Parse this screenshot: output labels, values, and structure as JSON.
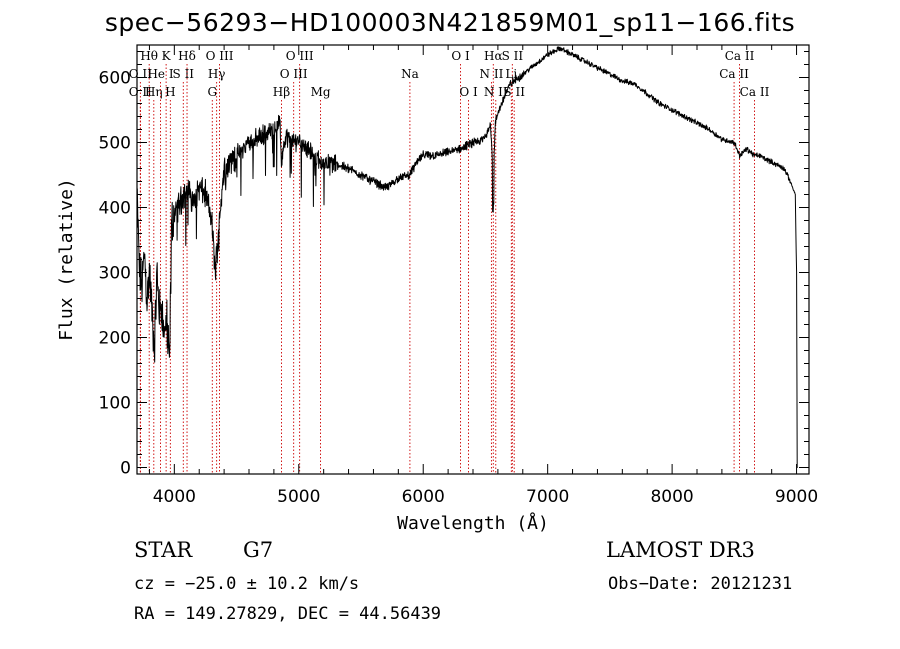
{
  "chart_data": {
    "type": "line",
    "title": "spec−56293−HD100003N421859M01_sp11−166.fits",
    "xlabel": "Wavelength (Å)",
    "ylabel": "Flux (relative)",
    "xlim": [
      3700,
      9100
    ],
    "ylim": [
      -10,
      650
    ],
    "x_ticks": [
      4000,
      5000,
      6000,
      7000,
      8000,
      9000
    ],
    "x_tick_labels": [
      "4000",
      "5000",
      "6000",
      "7000",
      "8000",
      "9000"
    ],
    "y_ticks": [
      0,
      100,
      200,
      300,
      400,
      500,
      600
    ],
    "y_tick_labels": [
      "0",
      "100",
      "200",
      "300",
      "400",
      "500",
      "600"
    ],
    "grid": false,
    "series": [
      {
        "name": "spectrum",
        "x": [
          3700,
          3720,
          3740,
          3760,
          3780,
          3800,
          3820,
          3840,
          3860,
          3880,
          3900,
          3920,
          3940,
          3960,
          3980,
          4000,
          4050,
          4100,
          4150,
          4200,
          4250,
          4300,
          4330,
          4360,
          4400,
          4450,
          4500,
          4600,
          4700,
          4800,
          4850,
          4860,
          4900,
          4950,
          5000,
          5100,
          5170,
          5250,
          5400,
          5500,
          5600,
          5700,
          5800,
          5890,
          5950,
          6000,
          6100,
          6200,
          6300,
          6400,
          6450,
          6500,
          6540,
          6563,
          6580,
          6600,
          6650,
          6700,
          6800,
          6900,
          7000,
          7100,
          7200,
          7300,
          7400,
          7500,
          7600,
          7700,
          7800,
          7900,
          8000,
          8100,
          8200,
          8300,
          8400,
          8500,
          8542,
          8600,
          8662,
          8700,
          8800,
          8900,
          8950,
          8990,
          9000,
          9005
        ],
        "y": [
          420,
          300,
          280,
          330,
          260,
          300,
          240,
          180,
          300,
          240,
          250,
          200,
          230,
          160,
          380,
          390,
          410,
          430,
          410,
          430,
          420,
          380,
          300,
          380,
          460,
          470,
          480,
          500,
          510,
          520,
          530,
          470,
          510,
          500,
          505,
          485,
          470,
          470,
          460,
          450,
          440,
          430,
          445,
          450,
          470,
          480,
          480,
          485,
          490,
          500,
          500,
          510,
          530,
          450,
          530,
          545,
          570,
          590,
          605,
          620,
          635,
          645,
          635,
          625,
          615,
          605,
          595,
          590,
          575,
          560,
          550,
          540,
          530,
          520,
          505,
          500,
          480,
          490,
          480,
          480,
          470,
          460,
          440,
          420,
          300,
          0
        ]
      }
    ],
    "line_markers": [
      {
        "label": "O II",
        "wavelength": 3727,
        "row": 1
      },
      {
        "label": "O II",
        "wavelength": 3727,
        "row": 2
      },
      {
        "label": "Hθ",
        "wavelength": 3798,
        "row": 0
      },
      {
        "label": "Hη",
        "wavelength": 3835,
        "row": 2
      },
      {
        "label": "He I",
        "wavelength": 3889,
        "row": 1
      },
      {
        "label": "K",
        "wavelength": 3934,
        "row": 0
      },
      {
        "label": "H",
        "wavelength": 3968,
        "row": 2
      },
      {
        "label": "S II",
        "wavelength": 4072,
        "row": 1
      },
      {
        "label": "Hδ",
        "wavelength": 4102,
        "row": 0
      },
      {
        "label": "O III",
        "wavelength": 4363,
        "row": 0
      },
      {
        "label": "Hγ",
        "wavelength": 4340,
        "row": 1
      },
      {
        "label": "G",
        "wavelength": 4305,
        "row": 2
      },
      {
        "label": "Hβ",
        "wavelength": 4861,
        "row": 2
      },
      {
        "label": "O III",
        "wavelength": 5007,
        "row": 0
      },
      {
        "label": "O III",
        "wavelength": 4959,
        "row": 1
      },
      {
        "label": "Mg",
        "wavelength": 5175,
        "row": 2
      },
      {
        "label": "Na",
        "wavelength": 5893,
        "row": 1
      },
      {
        "label": "O I",
        "wavelength": 6300,
        "row": 0
      },
      {
        "label": "O I",
        "wavelength": 6364,
        "row": 2
      },
      {
        "label": "Hα",
        "wavelength": 6563,
        "row": 0
      },
      {
        "label": "N II",
        "wavelength": 6548,
        "row": 1
      },
      {
        "label": "N II",
        "wavelength": 6583,
        "row": 2
      },
      {
        "label": "S II",
        "wavelength": 6716,
        "row": 0
      },
      {
        "label": "Li",
        "wavelength": 6708,
        "row": 1
      },
      {
        "label": "S II",
        "wavelength": 6731,
        "row": 2
      },
      {
        "label": "Ca II",
        "wavelength": 8542,
        "row": 0
      },
      {
        "label": "Ca II",
        "wavelength": 8498,
        "row": 1
      },
      {
        "label": "Ca II",
        "wavelength": 8662,
        "row": 2
      }
    ]
  },
  "info": {
    "object_class": "STAR",
    "subclass": "G7",
    "survey": "LAMOST DR3",
    "redshift_line": "cz = −25.0 ± 10.2 km/s",
    "obs_date_line": "Obs−Date: 20121231",
    "coords_line": "RA = 149.27829, DEC =  44.56439"
  },
  "colors": {
    "spectrum": "#000000",
    "axis": "#000000",
    "marker_line": "#cc0000",
    "background": "#ffffff"
  }
}
